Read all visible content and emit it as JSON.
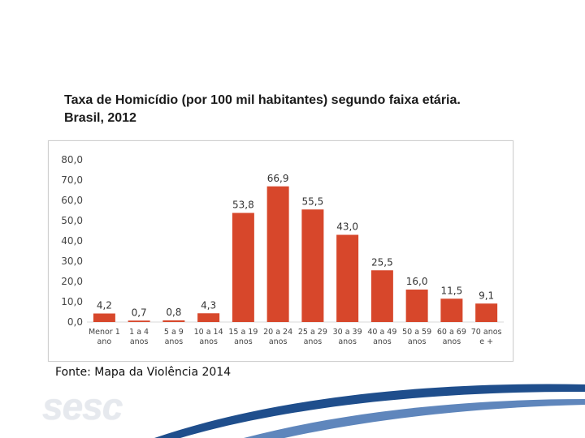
{
  "title": {
    "line1": "Taxa de Homicídio (por 100 mil habitantes) segundo faixa etária.",
    "line2": "Brasil, 2012"
  },
  "source": "Fonte: Mapa da Violência 2014",
  "logo_text": "sesc",
  "colors": {
    "bar": "#d7472b",
    "swoosh_dark": "#1f4e8c",
    "swoosh_light": "#5f86bc"
  },
  "chart_data": {
    "type": "bar",
    "title": "Taxa de Homicídio (por 100 mil habitantes) segundo faixa etária. Brasil, 2012",
    "xlabel": "",
    "ylabel": "",
    "ylim": [
      0,
      80
    ],
    "yticks": [
      "80,0",
      "70,0",
      "60,0",
      "50,0",
      "40,0",
      "30,0",
      "20,0",
      "10,0",
      "0,0"
    ],
    "categories": [
      [
        "Menor 1",
        "ano"
      ],
      [
        "1 a 4",
        "anos"
      ],
      [
        "5 a 9",
        "anos"
      ],
      [
        "10 a 14",
        "anos"
      ],
      [
        "15 a 19",
        "anos"
      ],
      [
        "20 a 24",
        "anos"
      ],
      [
        "25 a 29",
        "anos"
      ],
      [
        "30 a 39",
        "anos"
      ],
      [
        "40 a 49",
        "anos"
      ],
      [
        "50 a 59",
        "anos"
      ],
      [
        "60 a 69",
        "anos"
      ],
      [
        "70 anos",
        "e +"
      ]
    ],
    "values": [
      4.2,
      0.7,
      0.8,
      4.3,
      53.8,
      66.9,
      55.5,
      43.0,
      25.5,
      16.0,
      11.5,
      9.1
    ],
    "labels": [
      "4,2",
      "0,7",
      "0,8",
      "4,3",
      "53,8",
      "66,9",
      "55,5",
      "43,0",
      "25,5",
      "16,0",
      "11,5",
      "9,1"
    ],
    "grid": false,
    "legend": "none"
  }
}
